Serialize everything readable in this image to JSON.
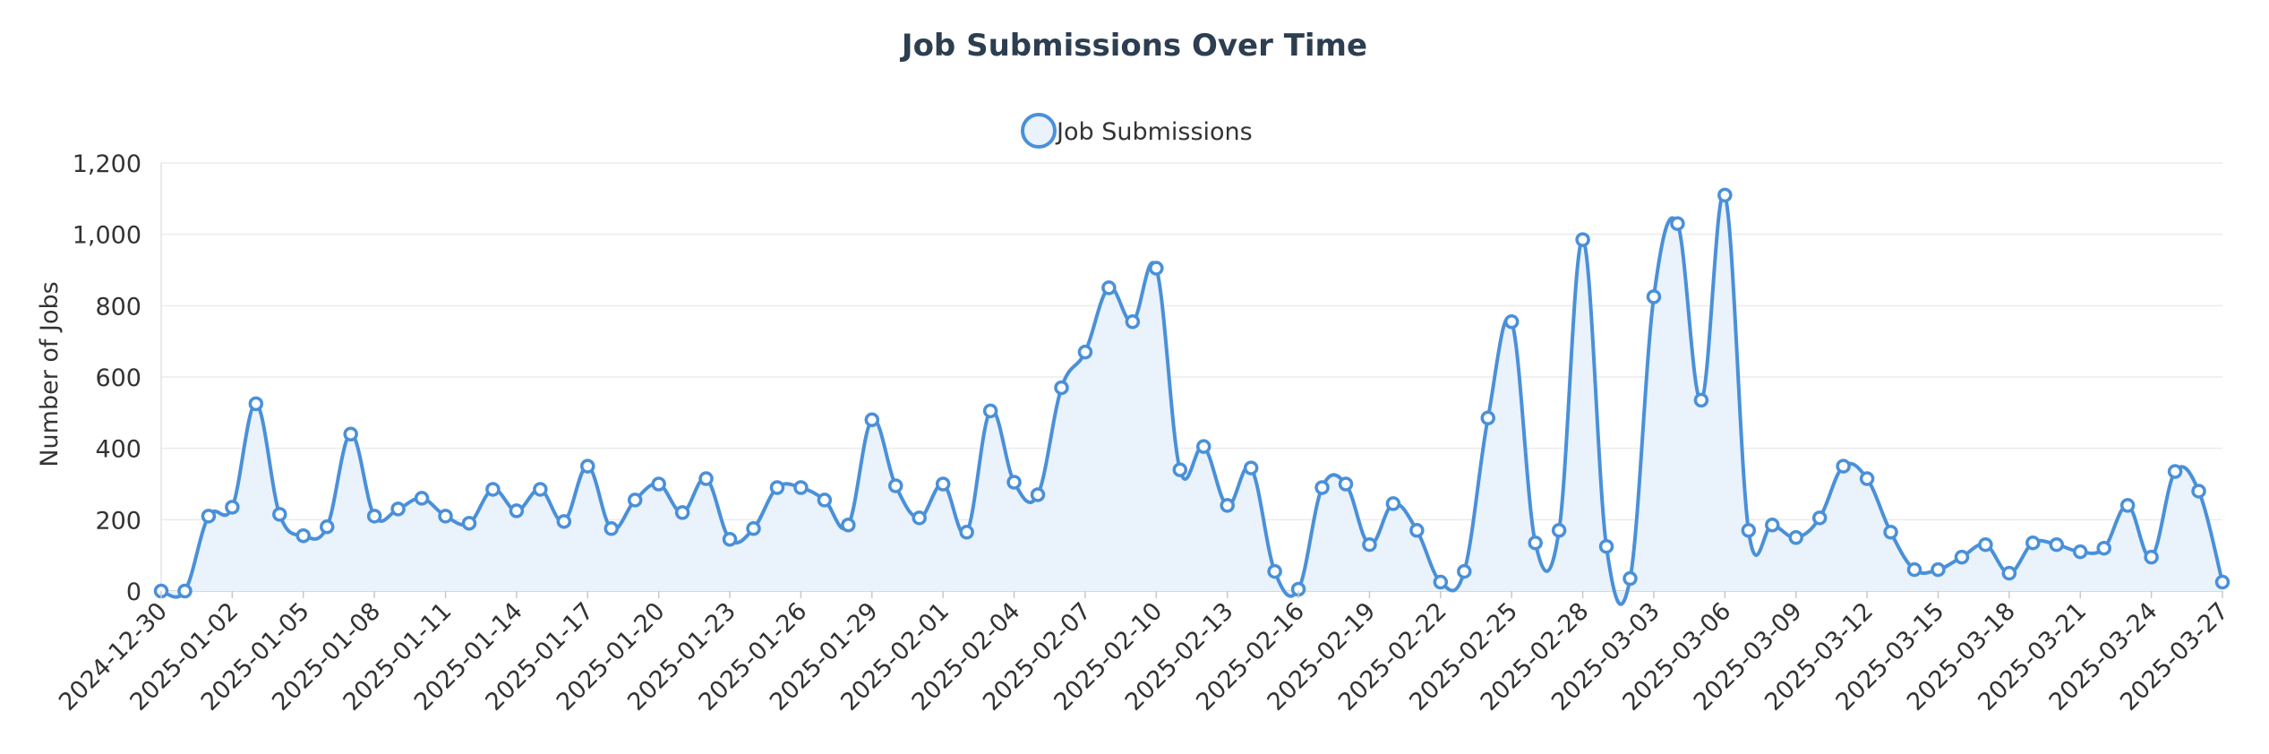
{
  "chart_data": {
    "type": "line",
    "title": "Job Submissions Over Time",
    "ylabel": "Number of Jobs",
    "xlabel": "",
    "ylim": [
      0,
      1200
    ],
    "yticks": [
      0,
      200,
      400,
      600,
      800,
      1000,
      1200
    ],
    "ytick_labels": [
      "0",
      "200",
      "400",
      "600",
      "800",
      "1,000",
      "1,200"
    ],
    "legend_position": "top-center",
    "grid": true,
    "colors": {
      "line": "#4a90d9",
      "fill": "#eaf2fb",
      "title": "#2c3e50"
    },
    "xtick_labels": [
      "2024-12-30",
      "2025-01-02",
      "2025-01-05",
      "2025-01-08",
      "2025-01-11",
      "2025-01-14",
      "2025-01-17",
      "2025-01-20",
      "2025-01-23",
      "2025-01-26",
      "2025-01-29",
      "2025-02-01",
      "2025-02-04",
      "2025-02-07",
      "2025-02-10",
      "2025-02-13",
      "2025-02-16",
      "2025-02-19",
      "2025-02-22",
      "2025-02-25",
      "2025-02-28",
      "2025-03-03",
      "2025-03-06",
      "2025-03-09",
      "2025-03-12",
      "2025-03-15",
      "2025-03-18",
      "2025-03-21",
      "2025-03-24",
      "2025-03-27"
    ],
    "series": [
      {
        "name": "Job Submissions",
        "x": [
          "2024-12-30",
          "2024-12-31",
          "2025-01-01",
          "2025-01-02",
          "2025-01-03",
          "2025-01-04",
          "2025-01-05",
          "2025-01-06",
          "2025-01-07",
          "2025-01-08",
          "2025-01-09",
          "2025-01-10",
          "2025-01-11",
          "2025-01-12",
          "2025-01-13",
          "2025-01-14",
          "2025-01-15",
          "2025-01-16",
          "2025-01-17",
          "2025-01-18",
          "2025-01-19",
          "2025-01-20",
          "2025-01-21",
          "2025-01-22",
          "2025-01-23",
          "2025-01-24",
          "2025-01-25",
          "2025-01-26",
          "2025-01-27",
          "2025-01-28",
          "2025-01-29",
          "2025-01-30",
          "2025-01-31",
          "2025-02-01",
          "2025-02-02",
          "2025-02-03",
          "2025-02-04",
          "2025-02-05",
          "2025-02-06",
          "2025-02-07",
          "2025-02-08",
          "2025-02-09",
          "2025-02-10",
          "2025-02-11",
          "2025-02-12",
          "2025-02-13",
          "2025-02-14",
          "2025-02-15",
          "2025-02-16",
          "2025-02-17",
          "2025-02-18",
          "2025-02-19",
          "2025-02-20",
          "2025-02-21",
          "2025-02-22",
          "2025-02-23",
          "2025-02-24",
          "2025-02-25",
          "2025-02-26",
          "2025-02-27",
          "2025-02-28",
          "2025-03-01",
          "2025-03-02",
          "2025-03-03",
          "2025-03-04",
          "2025-03-05",
          "2025-03-06",
          "2025-03-07",
          "2025-03-08",
          "2025-03-09",
          "2025-03-10",
          "2025-03-11",
          "2025-03-12",
          "2025-03-13",
          "2025-03-14",
          "2025-03-15",
          "2025-03-16",
          "2025-03-17",
          "2025-03-18",
          "2025-03-19",
          "2025-03-20",
          "2025-03-21",
          "2025-03-22",
          "2025-03-23",
          "2025-03-24",
          "2025-03-25",
          "2025-03-26",
          "2025-03-27"
        ],
        "values": [
          0,
          0,
          210,
          235,
          525,
          215,
          155,
          180,
          440,
          210,
          230,
          260,
          210,
          190,
          285,
          225,
          285,
          195,
          350,
          175,
          255,
          300,
          220,
          315,
          145,
          175,
          290,
          290,
          255,
          185,
          480,
          295,
          205,
          300,
          165,
          505,
          305,
          270,
          570,
          670,
          850,
          755,
          905,
          340,
          405,
          240,
          345,
          55,
          5,
          290,
          300,
          130,
          245,
          170,
          25,
          55,
          485,
          755,
          135,
          170,
          985,
          125,
          35,
          825,
          1030,
          535,
          1110,
          170,
          185,
          150,
          205,
          350,
          315,
          165,
          60,
          60,
          95,
          130,
          50,
          135,
          130,
          110,
          120,
          240,
          95,
          335,
          280,
          25
        ]
      }
    ]
  }
}
